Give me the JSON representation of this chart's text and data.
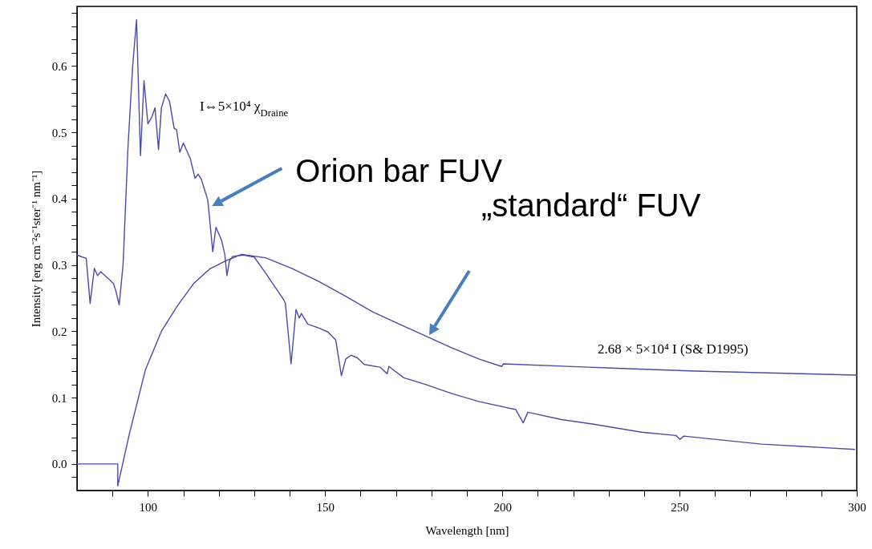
{
  "chart_data": {
    "type": "line",
    "xlabel": "Wavelength [nm]",
    "ylabel": "Intensity [erg cm⁻²s⁻¹ster⁻¹ nm⁻¹]",
    "annotations": [
      "I⇔5×10⁴ χ$_{Draine}$",
      {
        "text": "Orion bar FUV",
        "x": 118.1,
        "y": 0.389
      },
      "„standard“ FUV",
      "2.68 × 5×10⁴ I (S& D1995)"
    ],
    "series": [
      {
        "color": "#4b4ba3",
        "x": [
          80,
          82.6,
          83.7,
          84.9,
          85.8,
          86.7,
          90.3,
          91.0,
          91.9,
          93.0,
          94.4,
          95.7,
          96.8,
          97.9,
          98.9,
          100,
          101.1,
          102.0,
          103.0,
          103.8,
          105.0,
          106.1,
          107.4,
          108.1,
          109.0,
          110,
          112,
          113.3,
          114.2,
          115.1,
          116.9,
          118.3,
          119.2,
          120.8,
          121.7,
          122.3,
          123,
          123.9,
          127,
          130,
          133.2,
          138.4,
          138.8,
          140.4,
          141.8,
          142.7,
          143.3,
          145.1,
          148.3,
          150.8,
          153,
          154.6,
          155.8,
          157.3,
          159.1,
          161,
          165.5,
          167.5,
          168,
          172.2,
          178.3,
          185.8,
          193.5,
          203.8,
          205.9,
          207.2,
          216.7,
          225.7,
          239.3,
          249,
          250.1,
          251.2,
          273.1,
          299.5
        ],
        "values": [
          0.315,
          0.31,
          0.242,
          0.295,
          0.284,
          0.29,
          0.272,
          0.26,
          0.24,
          0.301,
          0.48,
          0.6,
          0.67,
          0.465,
          0.578,
          0.513,
          0.523,
          0.537,
          0.474,
          0.537,
          0.558,
          0.547,
          0.506,
          0.504,
          0.47,
          0.484,
          0.46,
          0.431,
          0.437,
          0.429,
          0.398,
          0.32,
          0.357,
          0.337,
          0.316,
          0.284,
          0.306,
          0.313,
          0.315,
          0.312,
          0.288,
          0.247,
          0.242,
          0.151,
          0.233,
          0.22,
          0.227,
          0.211,
          0.205,
          0.199,
          0.187,
          0.133,
          0.158,
          0.164,
          0.16,
          0.15,
          0.146,
          0.136,
          0.147,
          0.13,
          0.12,
          0.106,
          0.094,
          0.082,
          0.062,
          0.078,
          0.067,
          0.06,
          0.048,
          0.043,
          0.037,
          0.042,
          0.03,
          0.022
        ]
      },
      {
        "color": "#4b4ba3",
        "x": [
          80,
          91.5,
          91.5,
          94.8,
          99.3,
          103.8,
          108.4,
          112.9,
          117.4,
          121.9,
          126.4,
          133.2,
          140.6,
          148.3,
          155.8,
          163.2,
          170.9,
          178.3,
          185.8,
          193.5,
          199.8,
          200.3,
          224.2,
          254.4,
          300
        ],
        "values": [
          0,
          0,
          -0.033,
          0.046,
          0.142,
          0.2,
          0.239,
          0.272,
          0.294,
          0.306,
          0.316,
          0.311,
          0.295,
          0.275,
          0.253,
          0.23,
          0.211,
          0.193,
          0.175,
          0.158,
          0.147,
          0.151,
          0.146,
          0.14,
          0.134
        ]
      }
    ],
    "xlim": [
      80,
      300
    ],
    "xticks": [
      {
        "value": 90,
        "label": null
      },
      100,
      {
        "value": 110,
        "label": null
      },
      {
        "value": 120,
        "label": null
      },
      {
        "value": 130,
        "label": null
      },
      {
        "value": 140,
        "label": null
      },
      150,
      {
        "value": 160,
        "label": null
      },
      {
        "value": 170,
        "label": null
      },
      {
        "value": 180,
        "label": null
      },
      {
        "value": 190,
        "label": null
      },
      200,
      {
        "value": 210,
        "label": null
      },
      {
        "value": 220,
        "label": null
      },
      {
        "value": 230,
        "label": null
      },
      {
        "value": 240,
        "label": null
      },
      250,
      {
        "value": 260,
        "label": null
      },
      {
        "value": 270,
        "label": null
      },
      {
        "value": 280,
        "label": null
      },
      {
        "value": 290,
        "label": null
      },
      300
    ],
    "ylim": [
      -0.04,
      0.69
    ],
    "yticks": [
      {
        "value": -0.02,
        "label": null
      },
      {
        "value": 0,
        "label": "0.0"
      },
      {
        "value": 0.02,
        "label": null
      },
      {
        "value": 0.04,
        "label": null
      },
      {
        "value": 0.06,
        "label": null
      },
      {
        "value": 0.08,
        "label": null
      },
      0.1,
      {
        "value": 0.12,
        "label": null
      },
      {
        "value": 0.14,
        "label": null
      },
      {
        "value": 0.16,
        "label": null
      },
      {
        "value": 0.18,
        "label": null
      },
      0.2,
      {
        "value": 0.22,
        "label": null
      },
      {
        "value": 0.24,
        "label": null
      },
      {
        "value": 0.26,
        "label": null
      },
      {
        "value": 0.28,
        "label": null
      },
      0.3,
      {
        "value": 0.32,
        "label": null
      },
      {
        "value": 0.34,
        "label": null
      },
      {
        "value": 0.36,
        "label": null
      },
      {
        "value": 0.38,
        "label": null
      },
      0.4,
      {
        "value": 0.42,
        "label": null
      },
      {
        "value": 0.44,
        "label": null
      },
      {
        "value": 0.46,
        "label": null
      },
      {
        "value": 0.48,
        "label": null
      },
      0.5,
      {
        "value": 0.52,
        "label": null
      },
      {
        "value": 0.54,
        "label": null
      },
      {
        "value": 0.56,
        "label": null
      },
      {
        "value": 0.58,
        "label": null
      },
      0.6,
      {
        "value": 0.62,
        "label": null
      },
      {
        "value": 0.64,
        "label": null
      },
      {
        "value": 0.66,
        "label": null
      },
      {
        "value": 0.68,
        "label": null
      }
    ],
    "grid": false,
    "marker": "none",
    "line_style": "solid"
  }
}
